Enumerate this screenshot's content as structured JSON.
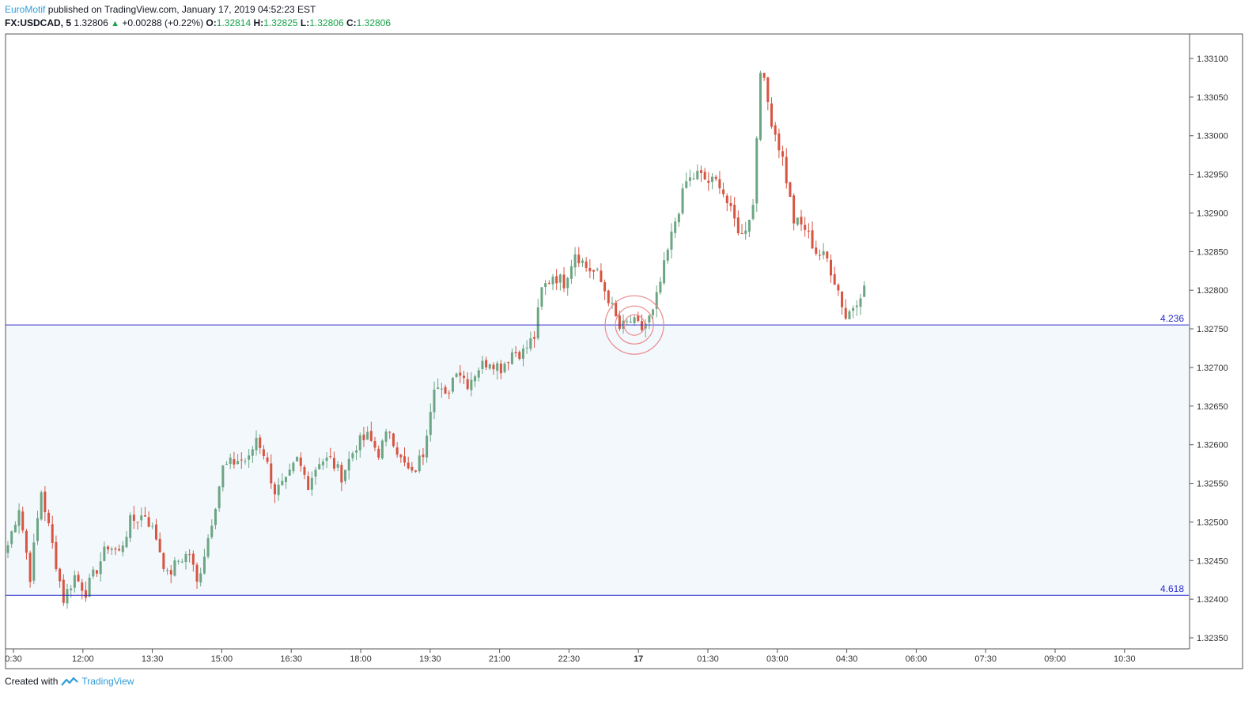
{
  "header": {
    "author": "EuroMotif",
    "published_text": "published on TradingView.com, January 17, 2019 04:52:23 EST",
    "symbol": "FX:USDCAD, 5",
    "last": "1.32806",
    "change": "+0.00288 (+0.22%)",
    "o_label": "O:",
    "o_value": "1.32814",
    "h_label": "H:",
    "h_value": "1.32825",
    "l_label": "L:",
    "l_value": "1.32806",
    "c_label": "C:",
    "c_value": "1.32806"
  },
  "footer": {
    "created_with": "Created with",
    "brand": "TradingView"
  },
  "colors": {
    "up": "#6ba583",
    "down": "#d75442",
    "fib_line": "#2a2ac8",
    "fib_zone": "#f3f8fd",
    "circle": "#e98a8a",
    "axis_text": "#333333",
    "brand": "#2f9dd9"
  },
  "chart_data": {
    "type": "candlestick",
    "symbol": "FX:USDCAD",
    "timeframe": "5",
    "y_axis": {
      "min": 1.3233,
      "max": 1.3313,
      "ticks": [
        "1.32350",
        "1.32400",
        "1.32450",
        "1.32500",
        "1.32550",
        "1.32600",
        "1.32650",
        "1.32700",
        "1.32750",
        "1.32800",
        "1.32850",
        "1.32900",
        "1.32950",
        "1.33000",
        "1.33050",
        "1.33100"
      ]
    },
    "x_axis": {
      "ticks": [
        {
          "label": "0:30",
          "bold": false
        },
        {
          "label": "12:00",
          "bold": false
        },
        {
          "label": "13:30",
          "bold": false
        },
        {
          "label": "15:00",
          "bold": false
        },
        {
          "label": "16:30",
          "bold": false
        },
        {
          "label": "18:00",
          "bold": false
        },
        {
          "label": "19:30",
          "bold": false
        },
        {
          "label": "21:00",
          "bold": false
        },
        {
          "label": "22:30",
          "bold": false
        },
        {
          "label": "17",
          "bold": true
        },
        {
          "label": "01:30",
          "bold": false
        },
        {
          "label": "03:00",
          "bold": false
        },
        {
          "label": "04:30",
          "bold": false
        },
        {
          "label": "06:00",
          "bold": false
        },
        {
          "label": "07:30",
          "bold": false
        },
        {
          "label": "09:00",
          "bold": false
        },
        {
          "label": "10:30",
          "bold": false
        }
      ]
    },
    "fib_levels": [
      {
        "label": "4.236",
        "price": 1.32755
      },
      {
        "label": "4.618",
        "price": 1.32405
      }
    ],
    "highlight": {
      "price": 1.32755,
      "bar_index": 169
    },
    "anchors": [
      {
        "i": 0,
        "p": 1.3247
      },
      {
        "i": 3,
        "p": 1.3252
      },
      {
        "i": 6,
        "p": 1.3243
      },
      {
        "i": 9,
        "p": 1.3254
      },
      {
        "i": 12,
        "p": 1.3247
      },
      {
        "i": 15,
        "p": 1.324
      },
      {
        "i": 18,
        "p": 1.3243
      },
      {
        "i": 21,
        "p": 1.3241
      },
      {
        "i": 24,
        "p": 1.3244
      },
      {
        "i": 27,
        "p": 1.3247
      },
      {
        "i": 30,
        "p": 1.3246
      },
      {
        "i": 33,
        "p": 1.325
      },
      {
        "i": 37,
        "p": 1.3251
      },
      {
        "i": 40,
        "p": 1.3248
      },
      {
        "i": 43,
        "p": 1.3243
      },
      {
        "i": 46,
        "p": 1.3245
      },
      {
        "i": 49,
        "p": 1.3246
      },
      {
        "i": 51,
        "p": 1.3242
      },
      {
        "i": 54,
        "p": 1.3248
      },
      {
        "i": 58,
        "p": 1.3257
      },
      {
        "i": 62,
        "p": 1.3258
      },
      {
        "i": 65,
        "p": 1.3258
      },
      {
        "i": 67,
        "p": 1.3261
      },
      {
        "i": 69,
        "p": 1.3259
      },
      {
        "i": 72,
        "p": 1.3254
      },
      {
        "i": 75,
        "p": 1.3255
      },
      {
        "i": 78,
        "p": 1.3258
      },
      {
        "i": 81,
        "p": 1.3255
      },
      {
        "i": 84,
        "p": 1.3258
      },
      {
        "i": 87,
        "p": 1.3258
      },
      {
        "i": 90,
        "p": 1.3256
      },
      {
        "i": 94,
        "p": 1.326
      },
      {
        "i": 97,
        "p": 1.3261
      },
      {
        "i": 100,
        "p": 1.3259
      },
      {
        "i": 103,
        "p": 1.3262
      },
      {
        "i": 106,
        "p": 1.3258
      },
      {
        "i": 109,
        "p": 1.3256
      },
      {
        "i": 112,
        "p": 1.3259
      },
      {
        "i": 115,
        "p": 1.3268
      },
      {
        "i": 118,
        "p": 1.3266
      },
      {
        "i": 121,
        "p": 1.327
      },
      {
        "i": 124,
        "p": 1.3268
      },
      {
        "i": 127,
        "p": 1.327
      },
      {
        "i": 130,
        "p": 1.3271
      },
      {
        "i": 133,
        "p": 1.327
      },
      {
        "i": 136,
        "p": 1.3272
      },
      {
        "i": 139,
        "p": 1.3272
      },
      {
        "i": 142,
        "p": 1.3274
      },
      {
        "i": 144,
        "p": 1.328
      },
      {
        "i": 147,
        "p": 1.3282
      },
      {
        "i": 150,
        "p": 1.3281
      },
      {
        "i": 153,
        "p": 1.3285
      },
      {
        "i": 156,
        "p": 1.3283
      },
      {
        "i": 159,
        "p": 1.3282
      },
      {
        "i": 162,
        "p": 1.3279
      },
      {
        "i": 165,
        "p": 1.3275
      },
      {
        "i": 168,
        "p": 1.3276
      },
      {
        "i": 171,
        "p": 1.3275
      },
      {
        "i": 174,
        "p": 1.3277
      },
      {
        "i": 177,
        "p": 1.3283
      },
      {
        "i": 180,
        "p": 1.3289
      },
      {
        "i": 183,
        "p": 1.3294
      },
      {
        "i": 186,
        "p": 1.3295
      },
      {
        "i": 189,
        "p": 1.3294
      },
      {
        "i": 192,
        "p": 1.3294
      },
      {
        "i": 195,
        "p": 1.329
      },
      {
        "i": 198,
        "p": 1.3287
      },
      {
        "i": 201,
        "p": 1.3291
      },
      {
        "i": 203,
        "p": 1.3309
      },
      {
        "i": 206,
        "p": 1.3302
      },
      {
        "i": 209,
        "p": 1.3297
      },
      {
        "i": 212,
        "p": 1.3289
      },
      {
        "i": 215,
        "p": 1.3288
      },
      {
        "i": 218,
        "p": 1.3285
      },
      {
        "i": 221,
        "p": 1.3284
      },
      {
        "i": 224,
        "p": 1.328
      },
      {
        "i": 226,
        "p": 1.32765
      },
      {
        "i": 228,
        "p": 1.3278
      },
      {
        "i": 231,
        "p": 1.32806
      }
    ],
    "total_bars": 232
  }
}
